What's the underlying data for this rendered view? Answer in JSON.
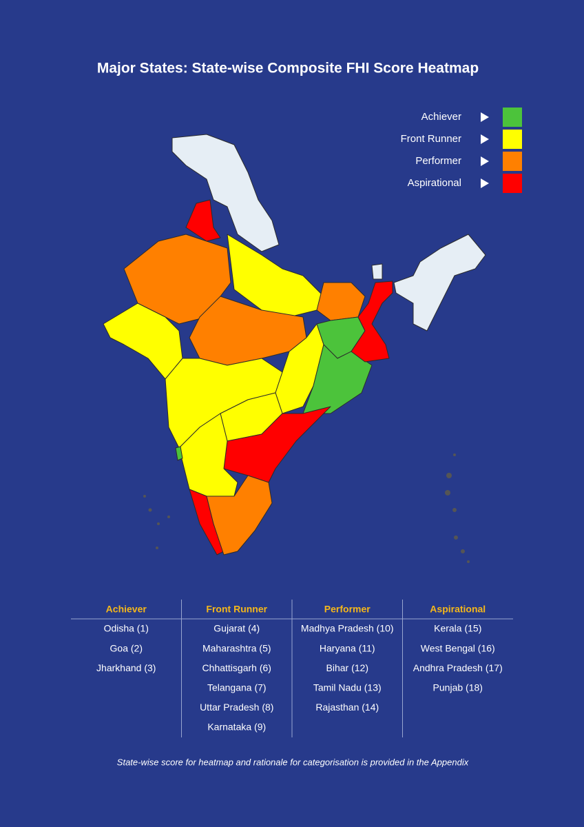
{
  "title": "Major States: State-wise Composite FHI Score Heatmap",
  "legend": [
    {
      "label": "Achiever"
    },
    {
      "label": "Front Runner"
    },
    {
      "label": "Performer"
    },
    {
      "label": "Aspirational"
    }
  ],
  "table": {
    "columns": [
      {
        "header": "Achiever",
        "rows": [
          "Odisha (1)",
          "Goa (2)",
          "Jharkhand (3)"
        ]
      },
      {
        "header": "Front Runner",
        "rows": [
          "Gujarat (4)",
          "Maharashtra (5)",
          "Chhattisgarh (6)",
          "Telangana (7)",
          "Uttar Pradesh (8)",
          "Karnataka (9)"
        ]
      },
      {
        "header": "Performer",
        "rows": [
          "Madhya Pradesh (10)",
          "Haryana (11)",
          "Bihar (12)",
          "Tamil Nadu (13)",
          "Rajasthan (14)"
        ]
      },
      {
        "header": "Aspirational",
        "rows": [
          "Kerala (15)",
          "West Bengal (16)",
          "Andhra Pradesh (17)",
          "Punjab (18)"
        ]
      }
    ]
  },
  "footnote": "State-wise score for heatmap and rationale for categorisation is provided in the Appendix"
}
